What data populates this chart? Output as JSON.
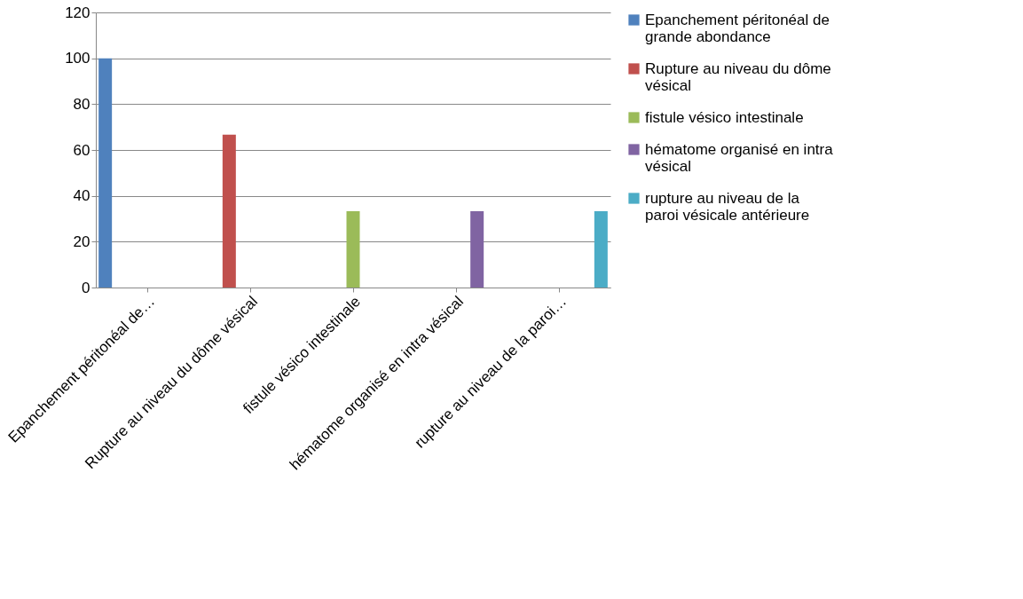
{
  "chart_data": {
    "type": "bar",
    "categories": [
      "Epanchement péritonéal de…",
      "Rupture au niveau du dôme vésical",
      "fistule vésico intestinale",
      "hématome organisé en intra vésical",
      "rupture au niveau de la paroi…"
    ],
    "series": [
      {
        "name": "Epanchement péritonéal de grande abondance",
        "color": "#4f81bd",
        "values": [
          100,
          null,
          null,
          null,
          null
        ]
      },
      {
        "name": "Rupture au niveau du dôme vésical",
        "color": "#c0504d",
        "values": [
          null,
          66.7,
          null,
          null,
          null
        ]
      },
      {
        "name": "fistule vésico intestinale",
        "color": "#9bbb59",
        "values": [
          null,
          null,
          33.3,
          null,
          null
        ]
      },
      {
        "name": "hématome organisé en intra vésical",
        "color": "#8064a2",
        "values": [
          null,
          null,
          null,
          33.3,
          null
        ]
      },
      {
        "name": "rupture au niveau de la paroi vésicale antérieure",
        "color": "#4bacc6",
        "values": [
          null,
          null,
          null,
          null,
          33.3
        ]
      }
    ],
    "ylim": [
      0,
      120
    ],
    "yticks": [
      0,
      20,
      40,
      60,
      80,
      100,
      120
    ],
    "grid": "y",
    "legend": "right"
  }
}
